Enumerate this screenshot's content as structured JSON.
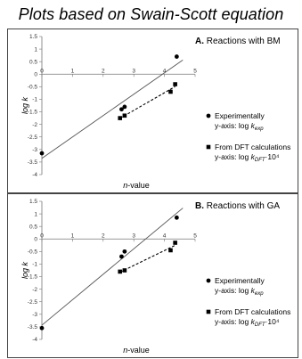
{
  "title": "Plots based on Swain-Scott equation",
  "colors": {
    "points": "#000000",
    "line_exp": "#555555",
    "line_dft": "#000000",
    "frame": "#444444"
  },
  "chart_data": [
    {
      "type": "scatter",
      "panel_label": "A.",
      "title": "Reactions with BM",
      "xlabel": "n-value",
      "ylabel": "log k",
      "xlim": [
        0,
        5
      ],
      "ylim": [
        -4,
        1.5
      ],
      "xticks": [
        "0",
        "1",
        "2",
        "3",
        "4",
        "5"
      ],
      "yticks": [
        "1.5",
        "1",
        "0.5",
        "0",
        "-0.5",
        "-1",
        "-1.5",
        "-2",
        "-2.5",
        "-3",
        "-3.5",
        "-4"
      ],
      "grid": false,
      "legend_position": "right",
      "series": [
        {
          "name": "Experimentally",
          "axis_text": "y-axis: log k",
          "axis_sub": "exp",
          "axis_sup": "",
          "marker": "circle",
          "line": "solid",
          "x": [
            0.0,
            2.6,
            2.7,
            4.4
          ],
          "y": [
            -3.15,
            -1.4,
            -1.3,
            0.7
          ]
        },
        {
          "name": "From DFT calculations",
          "axis_text": "y-axis: log k",
          "axis_sub": "DFT",
          "axis_sup": "·10⁴",
          "marker": "square",
          "line": "dashed",
          "x": [
            2.55,
            2.7,
            4.2,
            4.35
          ],
          "y": [
            -1.75,
            -1.65,
            -0.7,
            -0.4
          ]
        }
      ]
    },
    {
      "type": "scatter",
      "panel_label": "B.",
      "title": "Reactions with GA",
      "xlabel": "n-value",
      "ylabel": "log k",
      "xlim": [
        0,
        5
      ],
      "ylim": [
        -4,
        1.5
      ],
      "xticks": [
        "0",
        "1",
        "2",
        "3",
        "4",
        "5"
      ],
      "yticks": [
        "1.5",
        "1",
        "0.5",
        "0",
        "-0.5",
        "-1",
        "-1.5",
        "-2",
        "-2.5",
        "-3",
        "-3.5",
        "-4"
      ],
      "grid": false,
      "legend_position": "right",
      "series": [
        {
          "name": "Experimentally",
          "axis_text": "y-axis: log k",
          "axis_sub": "exp",
          "axis_sup": "",
          "marker": "circle",
          "line": "solid",
          "x": [
            0.0,
            2.6,
            2.7,
            4.4
          ],
          "y": [
            -3.55,
            -0.7,
            -0.5,
            0.85
          ]
        },
        {
          "name": "From DFT calculations",
          "axis_text": "y-axis: log k",
          "axis_sub": "DFT",
          "axis_sup": "·10⁴",
          "marker": "square",
          "line": "dashed",
          "x": [
            2.55,
            2.7,
            4.2,
            4.35
          ],
          "y": [
            -1.3,
            -1.25,
            -0.45,
            -0.15
          ]
        }
      ]
    }
  ]
}
